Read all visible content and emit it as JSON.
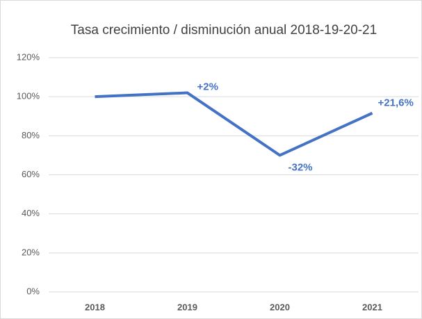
{
  "chart_data": {
    "type": "line",
    "title": "Tasa crecimiento / disminución anual 2018-19-20-21",
    "categories": [
      "2018",
      "2019",
      "2020",
      "2021"
    ],
    "series": [
      {
        "name": "Tasa",
        "color": "#4472c4",
        "values": [
          100,
          102,
          70,
          91.6
        ]
      }
    ],
    "annotations": [
      null,
      "+2%",
      "-32%",
      "+21,6%"
    ],
    "ylim": [
      0,
      120
    ],
    "yticks": [
      {
        "value": 0,
        "label": "0%"
      },
      {
        "value": 20,
        "label": "20%"
      },
      {
        "value": 40,
        "label": "40%"
      },
      {
        "value": 60,
        "label": "60%"
      },
      {
        "value": 80,
        "label": "80%"
      },
      {
        "value": 100,
        "label": "100%"
      },
      {
        "value": 120,
        "label": "120%"
      }
    ],
    "grid": true
  }
}
